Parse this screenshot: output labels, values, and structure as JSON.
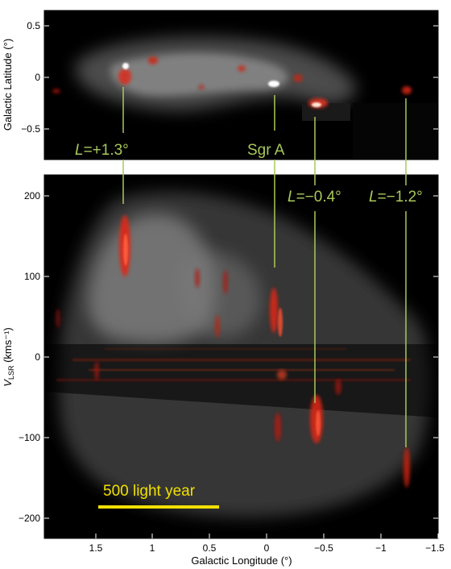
{
  "colors": {
    "annotation": "#a8c85a",
    "scalebar": "#f0e000",
    "emission_red": "#e02818",
    "panel_bg": "#000000"
  },
  "top_panel": {
    "ylabel": "Galactic Latitude (°)",
    "yticks": [
      "0.5",
      "0",
      "−0.5"
    ]
  },
  "bottom_panel": {
    "ylabel_v": "V",
    "ylabel_sub": "LSR",
    "ylabel_rest": " (kms⁻¹)",
    "yticks": [
      "200",
      "100",
      "0",
      "−100",
      "−200"
    ],
    "xticks": [
      "1.5",
      "1",
      "0.5",
      "0",
      "−0.5",
      "−1",
      "−1.5"
    ],
    "xlabel": "Galactic Longitude (°)"
  },
  "annotations": {
    "l_plus13_L": "L",
    "l_plus13_rest": "=+1.3°",
    "sgr_a": "Sgr A",
    "l_minus04_L": "L",
    "l_minus04_rest": "=−0.4°",
    "l_minus12_L": "L",
    "l_minus12_rest": "=−1.2°"
  },
  "scalebar": {
    "label": "500 light year"
  }
}
